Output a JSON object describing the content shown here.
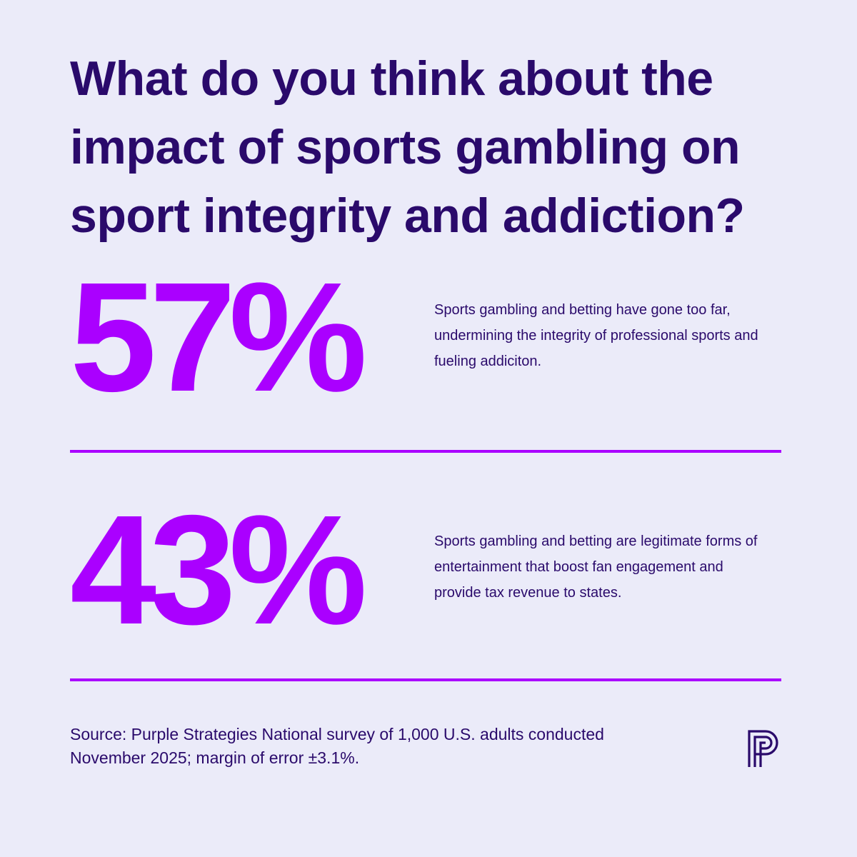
{
  "title": "What do you think about the impact of sports gambling on sport integrity and addiction?",
  "stats": [
    {
      "percent": "57%",
      "value": 57,
      "statement": "Sports gambling and betting have gone too far, undermining the integrity of professional sports and fueling addiciton."
    },
    {
      "percent": "43%",
      "value": 43,
      "statement": "Sports gambling and betting are legitimate forms of entertainment that boost fan engagement and provide tax revenue to states."
    }
  ],
  "source": "Source: Purple Strategies National survey of 1,000 U.S. adults conducted November 2025; margin of error ±3.1%.",
  "logo_icon": "purple-strategies-p-logo-icon",
  "colors": {
    "background": "#ebebf9",
    "text": "#2a0a6b",
    "accent": "#aa00ff"
  }
}
